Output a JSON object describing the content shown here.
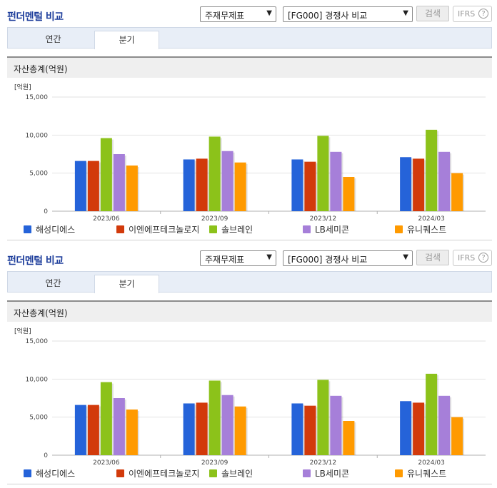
{
  "panel_title": "펀더멘털 비교",
  "selects": {
    "statement": "주재무제표",
    "compare": "[FG000] 경쟁사 비교"
  },
  "buttons": {
    "search": "검색",
    "ifrs": "IFRS",
    "help": "?"
  },
  "tabs": [
    {
      "label": "연간",
      "active": false
    },
    {
      "label": "분기",
      "active": true
    }
  ],
  "section_title": "자산총계(억원)",
  "colors": {
    "title": "#1f3f9c",
    "series": [
      "#2563d9",
      "#d23a0b",
      "#8cc21a",
      "#a67fd9",
      "#ff9a00"
    ]
  },
  "chart_data": {
    "type": "bar",
    "title": "자산총계(억원)",
    "unit_label": "[억원]",
    "categories": [
      "2023/06",
      "2023/09",
      "2023/12",
      "2024/03"
    ],
    "y_ticks": [
      "15,000",
      "10,000",
      "5,000",
      "0"
    ],
    "ylim": [
      0,
      15000
    ],
    "grid": true,
    "legend_position": "bottom",
    "series": [
      {
        "name": "해성디에스",
        "values": [
          6600,
          6800,
          6800,
          7100
        ]
      },
      {
        "name": "이엔에프테크놀로지",
        "values": [
          6600,
          6900,
          6500,
          6900
        ]
      },
      {
        "name": "솔브레인",
        "values": [
          9600,
          9800,
          9900,
          10700
        ]
      },
      {
        "name": "LB세미콘",
        "values": [
          7500,
          7900,
          7800,
          7800
        ]
      },
      {
        "name": "유니퀘스트",
        "values": [
          6000,
          6400,
          4500,
          5000
        ]
      }
    ]
  }
}
